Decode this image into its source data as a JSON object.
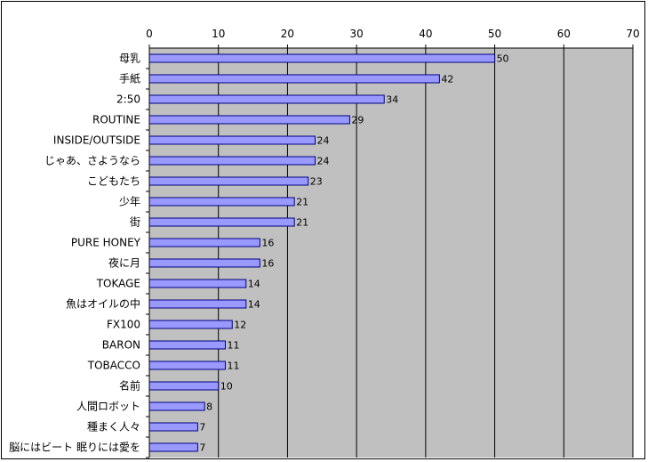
{
  "chart_data": {
    "type": "bar",
    "orientation": "horizontal",
    "categories": [
      "母乳",
      "手紙",
      "2:50",
      "ROUTINE",
      "INSIDE/OUTSIDE",
      "じゃあ、さようなら",
      "こどもたち",
      "少年",
      "街",
      "PURE HONEY",
      "夜に月",
      "TOKAGE",
      "魚はオイルの中",
      "FX100",
      "BARON",
      "TOBACCO",
      "名前",
      "人間ロボット",
      "種まく人々",
      "脳にはビート 眠りには愛を"
    ],
    "values": [
      50,
      42,
      34,
      29,
      24,
      24,
      23,
      21,
      21,
      16,
      16,
      14,
      14,
      12,
      11,
      11,
      10,
      8,
      7,
      7
    ],
    "data_labels": [
      "50",
      "42",
      "34",
      "29",
      "24",
      "24",
      "23",
      "21",
      "21",
      "16",
      "16",
      "14",
      "14",
      "12",
      "11",
      "11",
      "10",
      "8",
      "7",
      "7"
    ],
    "xticks": [
      "0",
      "10",
      "20",
      "30",
      "40",
      "50",
      "60",
      "70"
    ],
    "xlim": [
      0,
      70
    ],
    "title": "",
    "xlabel": "",
    "ylabel": "",
    "grid": true,
    "axis_position": "top",
    "legend": "none",
    "colors": {
      "bar_fill": "#9999ff",
      "bar_stroke": "#000080",
      "plot_background": "#c0c0c0",
      "gridline": "#000000",
      "page_background": "#ffffff"
    }
  }
}
